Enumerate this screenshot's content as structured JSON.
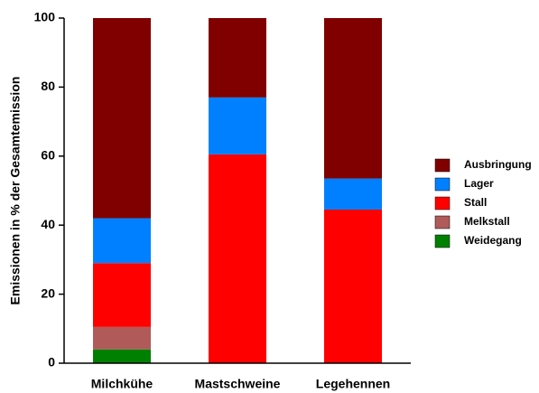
{
  "chart_data": {
    "type": "stacked_bar",
    "y_label": "Emissionen in % der Gesamtemission",
    "categories": [
      "Milchkühe",
      "Mastschweine",
      "Legehennen"
    ],
    "series": [
      {
        "name": "Weidegang",
        "color": "#008000",
        "values": [
          4,
          0,
          0
        ]
      },
      {
        "name": "Melkstall",
        "color": "#b05a5a",
        "values": [
          6.5,
          0,
          0
        ]
      },
      {
        "name": "Stall",
        "color": "#ff0000",
        "values": [
          18.5,
          60.5,
          44.5
        ]
      },
      {
        "name": "Lager",
        "color": "#0080ff",
        "values": [
          13,
          16.5,
          9
        ]
      },
      {
        "name": "Ausbringung",
        "color": "#800000",
        "values": [
          58,
          23,
          46.5
        ]
      }
    ],
    "ylim": [
      0,
      100
    ],
    "yticks": [
      0,
      20,
      40,
      60,
      80,
      100
    ],
    "legend": "right"
  }
}
